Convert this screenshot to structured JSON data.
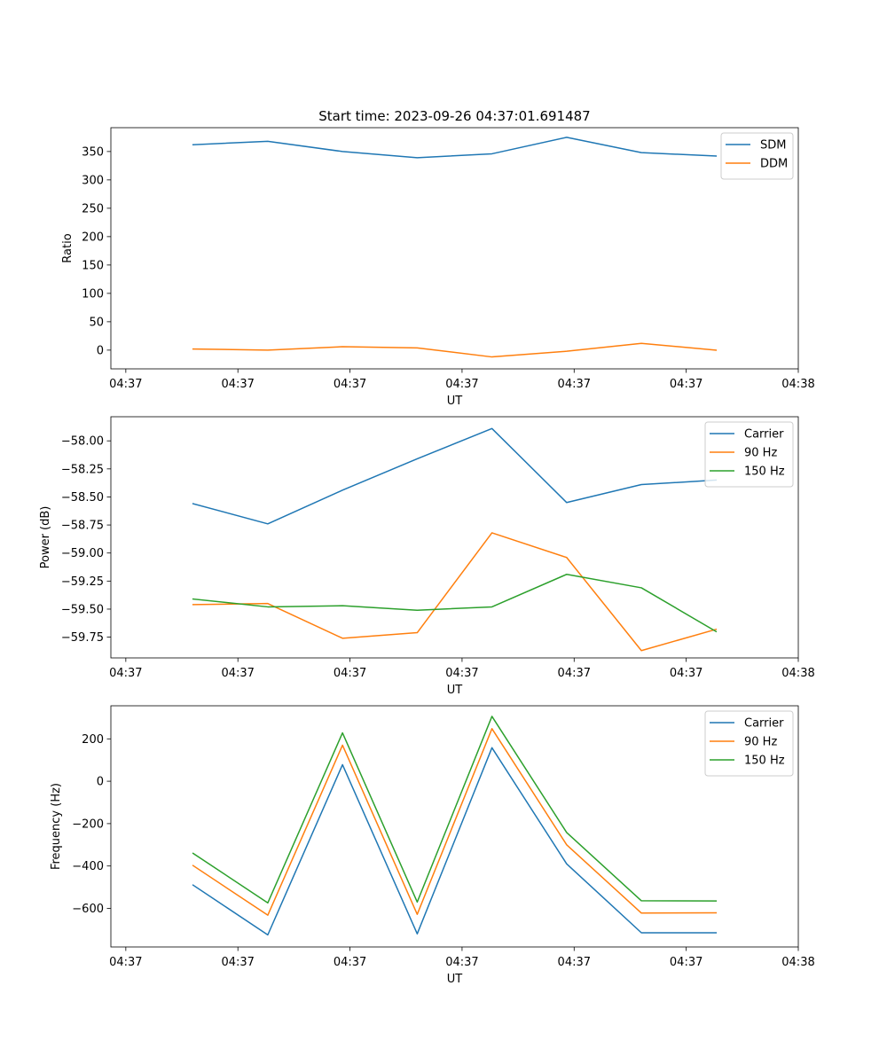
{
  "figure": {
    "title": "Start time: 2023-09-26 04:37:01.691487"
  },
  "chart_data": [
    {
      "type": "line",
      "title": "Start time: 2023-09-26 04:37:01.691487",
      "xlabel": "UT",
      "ylabel": "Ratio",
      "xlim": [
        0.4,
        9.6
      ],
      "xticks": [
        0.6,
        2.1,
        3.6,
        5.1,
        6.6,
        8.1,
        9.6
      ],
      "xticklabels": [
        "04:37",
        "04:37",
        "04:37",
        "04:37",
        "04:37",
        "04:37",
        "04:38"
      ],
      "ylim": [
        -33,
        392
      ],
      "yticks": [
        0,
        50,
        100,
        150,
        200,
        250,
        300,
        350
      ],
      "yticklabels": [
        "0",
        "50",
        "100",
        "150",
        "200",
        "250",
        "300",
        "350"
      ],
      "x": [
        1.5,
        2.5,
        3.5,
        4.5,
        5.5,
        6.5,
        7.5,
        8.5
      ],
      "legend_position": "top-right",
      "series": [
        {
          "name": "SDM",
          "color": "#1f77b4",
          "values": [
            362,
            368,
            350,
            339,
            346,
            375,
            348,
            342
          ]
        },
        {
          "name": "DDM",
          "color": "#ff7f0e",
          "values": [
            2,
            0,
            6,
            4,
            -12,
            -2,
            12,
            0
          ]
        }
      ]
    },
    {
      "type": "line",
      "title": "",
      "xlabel": "UT",
      "ylabel": "Power (dB)",
      "xlim": [
        0.4,
        9.6
      ],
      "xticks": [
        0.6,
        2.1,
        3.6,
        5.1,
        6.6,
        8.1,
        9.6
      ],
      "xticklabels": [
        "04:37",
        "04:37",
        "04:37",
        "04:37",
        "04:37",
        "04:37",
        "04:38"
      ],
      "ylim": [
        -59.935,
        -57.785
      ],
      "yticks": [
        -59.75,
        -59.5,
        -59.25,
        -59.0,
        -58.75,
        -58.5,
        -58.25,
        -58.0
      ],
      "yticklabels": [
        "−59.75",
        "−59.50",
        "−59.25",
        "−59.00",
        "−58.75",
        "−58.50",
        "−58.25",
        "−58.00"
      ],
      "x": [
        1.5,
        2.5,
        3.5,
        4.5,
        5.5,
        6.5,
        7.5,
        8.5
      ],
      "legend_position": "top-right",
      "series": [
        {
          "name": "Carrier",
          "color": "#1f77b4",
          "values": [
            -58.56,
            -58.74,
            -58.44,
            -58.16,
            -57.89,
            -58.55,
            -58.39,
            -58.35
          ]
        },
        {
          "name": "90 Hz",
          "color": "#ff7f0e",
          "values": [
            -59.46,
            -59.45,
            -59.76,
            -59.71,
            -58.82,
            -59.04,
            -59.87,
            -59.68
          ]
        },
        {
          "name": "150 Hz",
          "color": "#2ca02c",
          "values": [
            -59.41,
            -59.48,
            -59.47,
            -59.51,
            -59.48,
            -59.19,
            -59.31,
            -59.7
          ]
        }
      ]
    },
    {
      "type": "line",
      "title": "",
      "xlabel": "UT",
      "ylabel": "Frequency (Hz)",
      "xlim": [
        0.4,
        9.6
      ],
      "xticks": [
        0.6,
        2.1,
        3.6,
        5.1,
        6.6,
        8.1,
        9.6
      ],
      "xticklabels": [
        "04:37",
        "04:37",
        "04:37",
        "04:37",
        "04:37",
        "04:37",
        "04:38"
      ],
      "ylim": [
        -782,
        356
      ],
      "yticks": [
        -600,
        -400,
        -200,
        0,
        200
      ],
      "yticklabels": [
        "−600",
        "−400",
        "−200",
        "0",
        "200"
      ],
      "x": [
        1.5,
        2.5,
        3.5,
        4.5,
        5.5,
        6.5,
        7.5,
        8.5
      ],
      "legend_position": "top-right",
      "series": [
        {
          "name": "Carrier",
          "color": "#1f77b4",
          "values": [
            -490,
            -725,
            78,
            -720,
            158,
            -390,
            -715,
            -715
          ]
        },
        {
          "name": "90 Hz",
          "color": "#ff7f0e",
          "values": [
            -398,
            -632,
            170,
            -628,
            248,
            -300,
            -622,
            -621
          ]
        },
        {
          "name": "150 Hz",
          "color": "#2ca02c",
          "values": [
            -340,
            -574,
            228,
            -570,
            306,
            -242,
            -564,
            -565
          ]
        }
      ]
    }
  ]
}
